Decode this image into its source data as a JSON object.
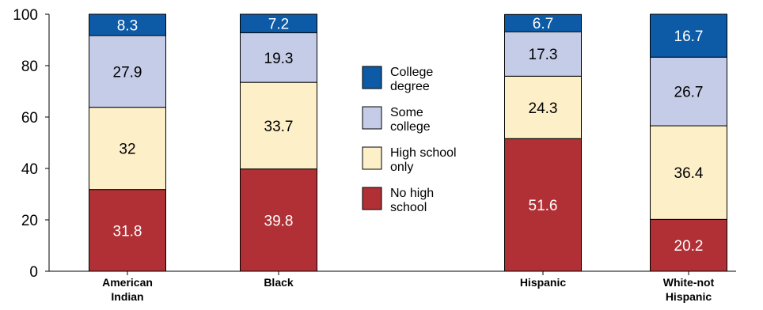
{
  "chart_data": {
    "type": "bar",
    "stacked": true,
    "title": "",
    "xlabel": "",
    "ylabel": "",
    "ylim": [
      0,
      100
    ],
    "yticks": [
      0,
      20,
      40,
      60,
      80,
      100
    ],
    "grid": false,
    "legend_position": "center",
    "categories": [
      [
        "American",
        "Indian"
      ],
      [
        "Black"
      ],
      [
        "Hispanic"
      ],
      [
        "White-not",
        "Hispanic"
      ]
    ],
    "series": [
      {
        "name": [
          "No high",
          "school"
        ],
        "color": "#b03035",
        "label_color": "#ffffff",
        "values": [
          31.8,
          39.8,
          51.6,
          20.2
        ]
      },
      {
        "name": [
          "High school",
          "only"
        ],
        "color": "#fdefc8",
        "label_color": "#000000",
        "values": [
          32,
          33.7,
          24.3,
          36.4
        ]
      },
      {
        "name": [
          "Some",
          "college"
        ],
        "color": "#c4cce8",
        "label_color": "#000000",
        "values": [
          27.9,
          19.3,
          17.3,
          26.7
        ]
      },
      {
        "name": [
          "College",
          "degree"
        ],
        "color": "#0d5aa7",
        "label_color": "#ffffff",
        "values": [
          8.3,
          7.2,
          6.7,
          16.7
        ]
      }
    ],
    "legend_order": [
      3,
      2,
      1,
      0
    ]
  }
}
